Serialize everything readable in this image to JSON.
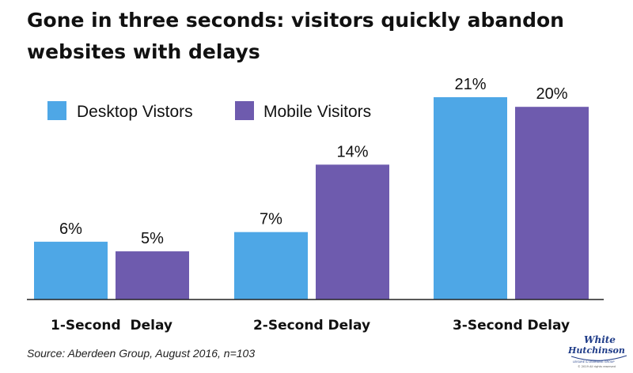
{
  "title": "Gone in three seconds: visitors quickly abandon websites with delays",
  "source": "Source: Aberdeen Group, August 2016, n=103",
  "logo": {
    "line1": "White",
    "line2": "Hutchinson",
    "tagline": "LEISURE & LEARNING GROUP",
    "copyright": "© 2019 All rights reserved"
  },
  "colors": {
    "desktop": "#4EA7E6",
    "mobile": "#6E5BAE",
    "axis": "#222222",
    "logo": "#1F3C88"
  },
  "chart_data": {
    "type": "bar",
    "categories": [
      "1-Second  Delay",
      "2-Second Delay",
      "3-Second Delay"
    ],
    "series": [
      {
        "name": "Desktop Vistors",
        "values": [
          6,
          7,
          21
        ],
        "labels": [
          "6%",
          "7%",
          "21%"
        ],
        "color": "#4EA7E6"
      },
      {
        "name": "Mobile Visitors",
        "values": [
          5,
          14,
          20
        ],
        "labels": [
          "5%",
          "14%",
          "20%"
        ],
        "color": "#6E5BAE"
      }
    ],
    "ylabel": "",
    "xlabel": "",
    "ylim": [
      0,
      21
    ],
    "grid": false,
    "legend": "top-left"
  }
}
